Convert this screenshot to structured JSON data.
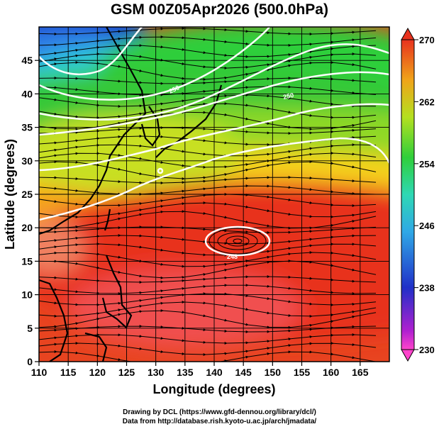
{
  "title": "GSM 00Z05Apr2026 (500.0hPa)",
  "xlabel": "Longitude (degrees)",
  "ylabel": "Latitude  (degrees)",
  "x_ticks": [
    "110",
    "115",
    "120",
    "125",
    "130",
    "135",
    "140",
    "145",
    "150",
    "155",
    "160",
    "165"
  ],
  "y_ticks": [
    "0",
    "5",
    "10",
    "15",
    "20",
    "25",
    "30",
    "35",
    "40",
    "45"
  ],
  "colorbar_ticks": [
    "230",
    "238",
    "246",
    "254",
    "262",
    "270"
  ],
  "credits": {
    "line1": "Drawing by DCL (https://www.gfd-dennou.org/library/dcl/)",
    "line2": "Data from http://database.rish.kyoto-u.ac.jp/arch/jmadata/"
  },
  "chart_data": {
    "type": "heatmap",
    "variable": "temperature with wind streamlines",
    "x_range": [
      110,
      170
    ],
    "y_range": [
      0,
      50
    ],
    "color_range": [
      230,
      270
    ],
    "contour_labels": [
      "250",
      "250",
      "248"
    ],
    "contour_levels": [
      248,
      250,
      252,
      254,
      256,
      258,
      266
    ],
    "colors": {
      "cold": "#1a33c8",
      "cool": "#2fd0d8",
      "mid": "#2fcf3a",
      "warm": "#f5d21a",
      "hot": "#e8321e",
      "contour": "#ffffff"
    }
  }
}
